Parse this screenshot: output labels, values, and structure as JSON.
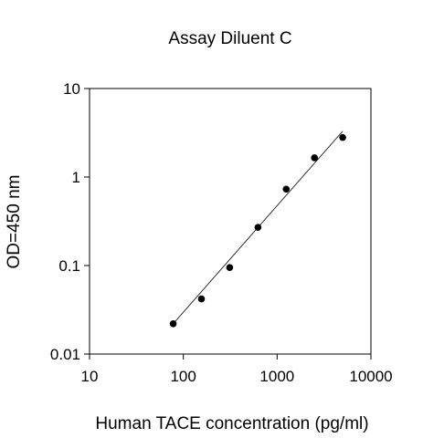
{
  "chart_data": {
    "type": "scatter",
    "title": "Assay Diluent C",
    "xlabel": "Human TACE concentration (pg/ml)",
    "ylabel": "OD=450 nm",
    "x_scale": "log",
    "y_scale": "log",
    "xlim": [
      10,
      10000
    ],
    "ylim": [
      0.01,
      10
    ],
    "x_ticks": [
      "10",
      "100",
      "1000",
      "10000"
    ],
    "y_ticks": [
      "0.01",
      "0.1",
      "1",
      "10"
    ],
    "grid": false,
    "legend": "none",
    "series": [
      {
        "x": [
          78,
          156,
          312,
          625,
          1250,
          2500,
          5000
        ],
        "y": [
          0.022,
          0.042,
          0.095,
          0.27,
          0.73,
          1.65,
          2.8
        ]
      }
    ],
    "fit_line": {
      "x": [
        78,
        5000
      ],
      "y": [
        0.022,
        3.3
      ]
    }
  }
}
